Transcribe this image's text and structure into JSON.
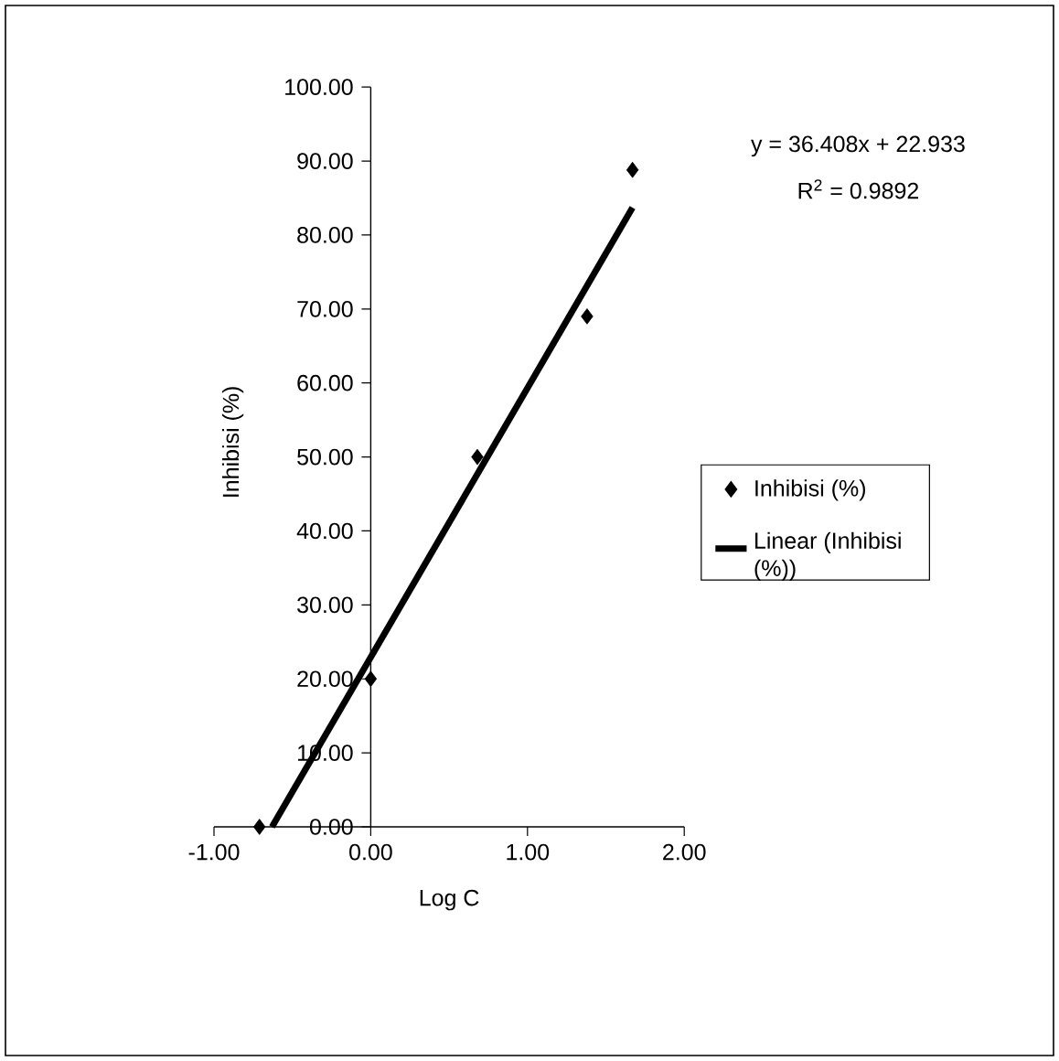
{
  "chart_data": {
    "type": "scatter",
    "xlabel": "Log C",
    "ylabel": "Inhibisi (%)",
    "xlim": [
      -1,
      2
    ],
    "ylim": [
      0,
      100
    ],
    "xticks": [
      {
        "value": -1,
        "label": "-1.00"
      },
      {
        "value": 0,
        "label": "0.00"
      },
      {
        "value": 1,
        "label": "1.00"
      },
      {
        "value": 2,
        "label": "2.00"
      }
    ],
    "yticks": [
      {
        "value": 0,
        "label": "0.00"
      },
      {
        "value": 10,
        "label": "10.00"
      },
      {
        "value": 20,
        "label": "20.00"
      },
      {
        "value": 30,
        "label": "30.00"
      },
      {
        "value": 40,
        "label": "40.00"
      },
      {
        "value": 50,
        "label": "50.00"
      },
      {
        "value": 60,
        "label": "60.00"
      },
      {
        "value": 70,
        "label": "70.00"
      },
      {
        "value": 80,
        "label": "80.00"
      },
      {
        "value": 90,
        "label": "90.00"
      },
      {
        "value": 100,
        "label": "100.00"
      }
    ],
    "series": [
      {
        "name": "Inhibisi (%)",
        "color": "#000000",
        "marker": "diamond",
        "x": [
          -0.71,
          0.0,
          0.68,
          1.38,
          1.67
        ],
        "values": [
          0,
          20,
          50,
          69,
          88.8
        ]
      },
      {
        "name": "Linear (Inhibisi (%))",
        "type": "line",
        "color": "#000000",
        "marker": "none",
        "line_style": "solid",
        "x": [
          -0.63,
          1.67
        ],
        "values": [
          0,
          83.7
        ]
      }
    ],
    "annotations": [
      "y = 36.408x + 22.933",
      "R$^{2}$ = 0.9892"
    ],
    "legend": "right"
  }
}
